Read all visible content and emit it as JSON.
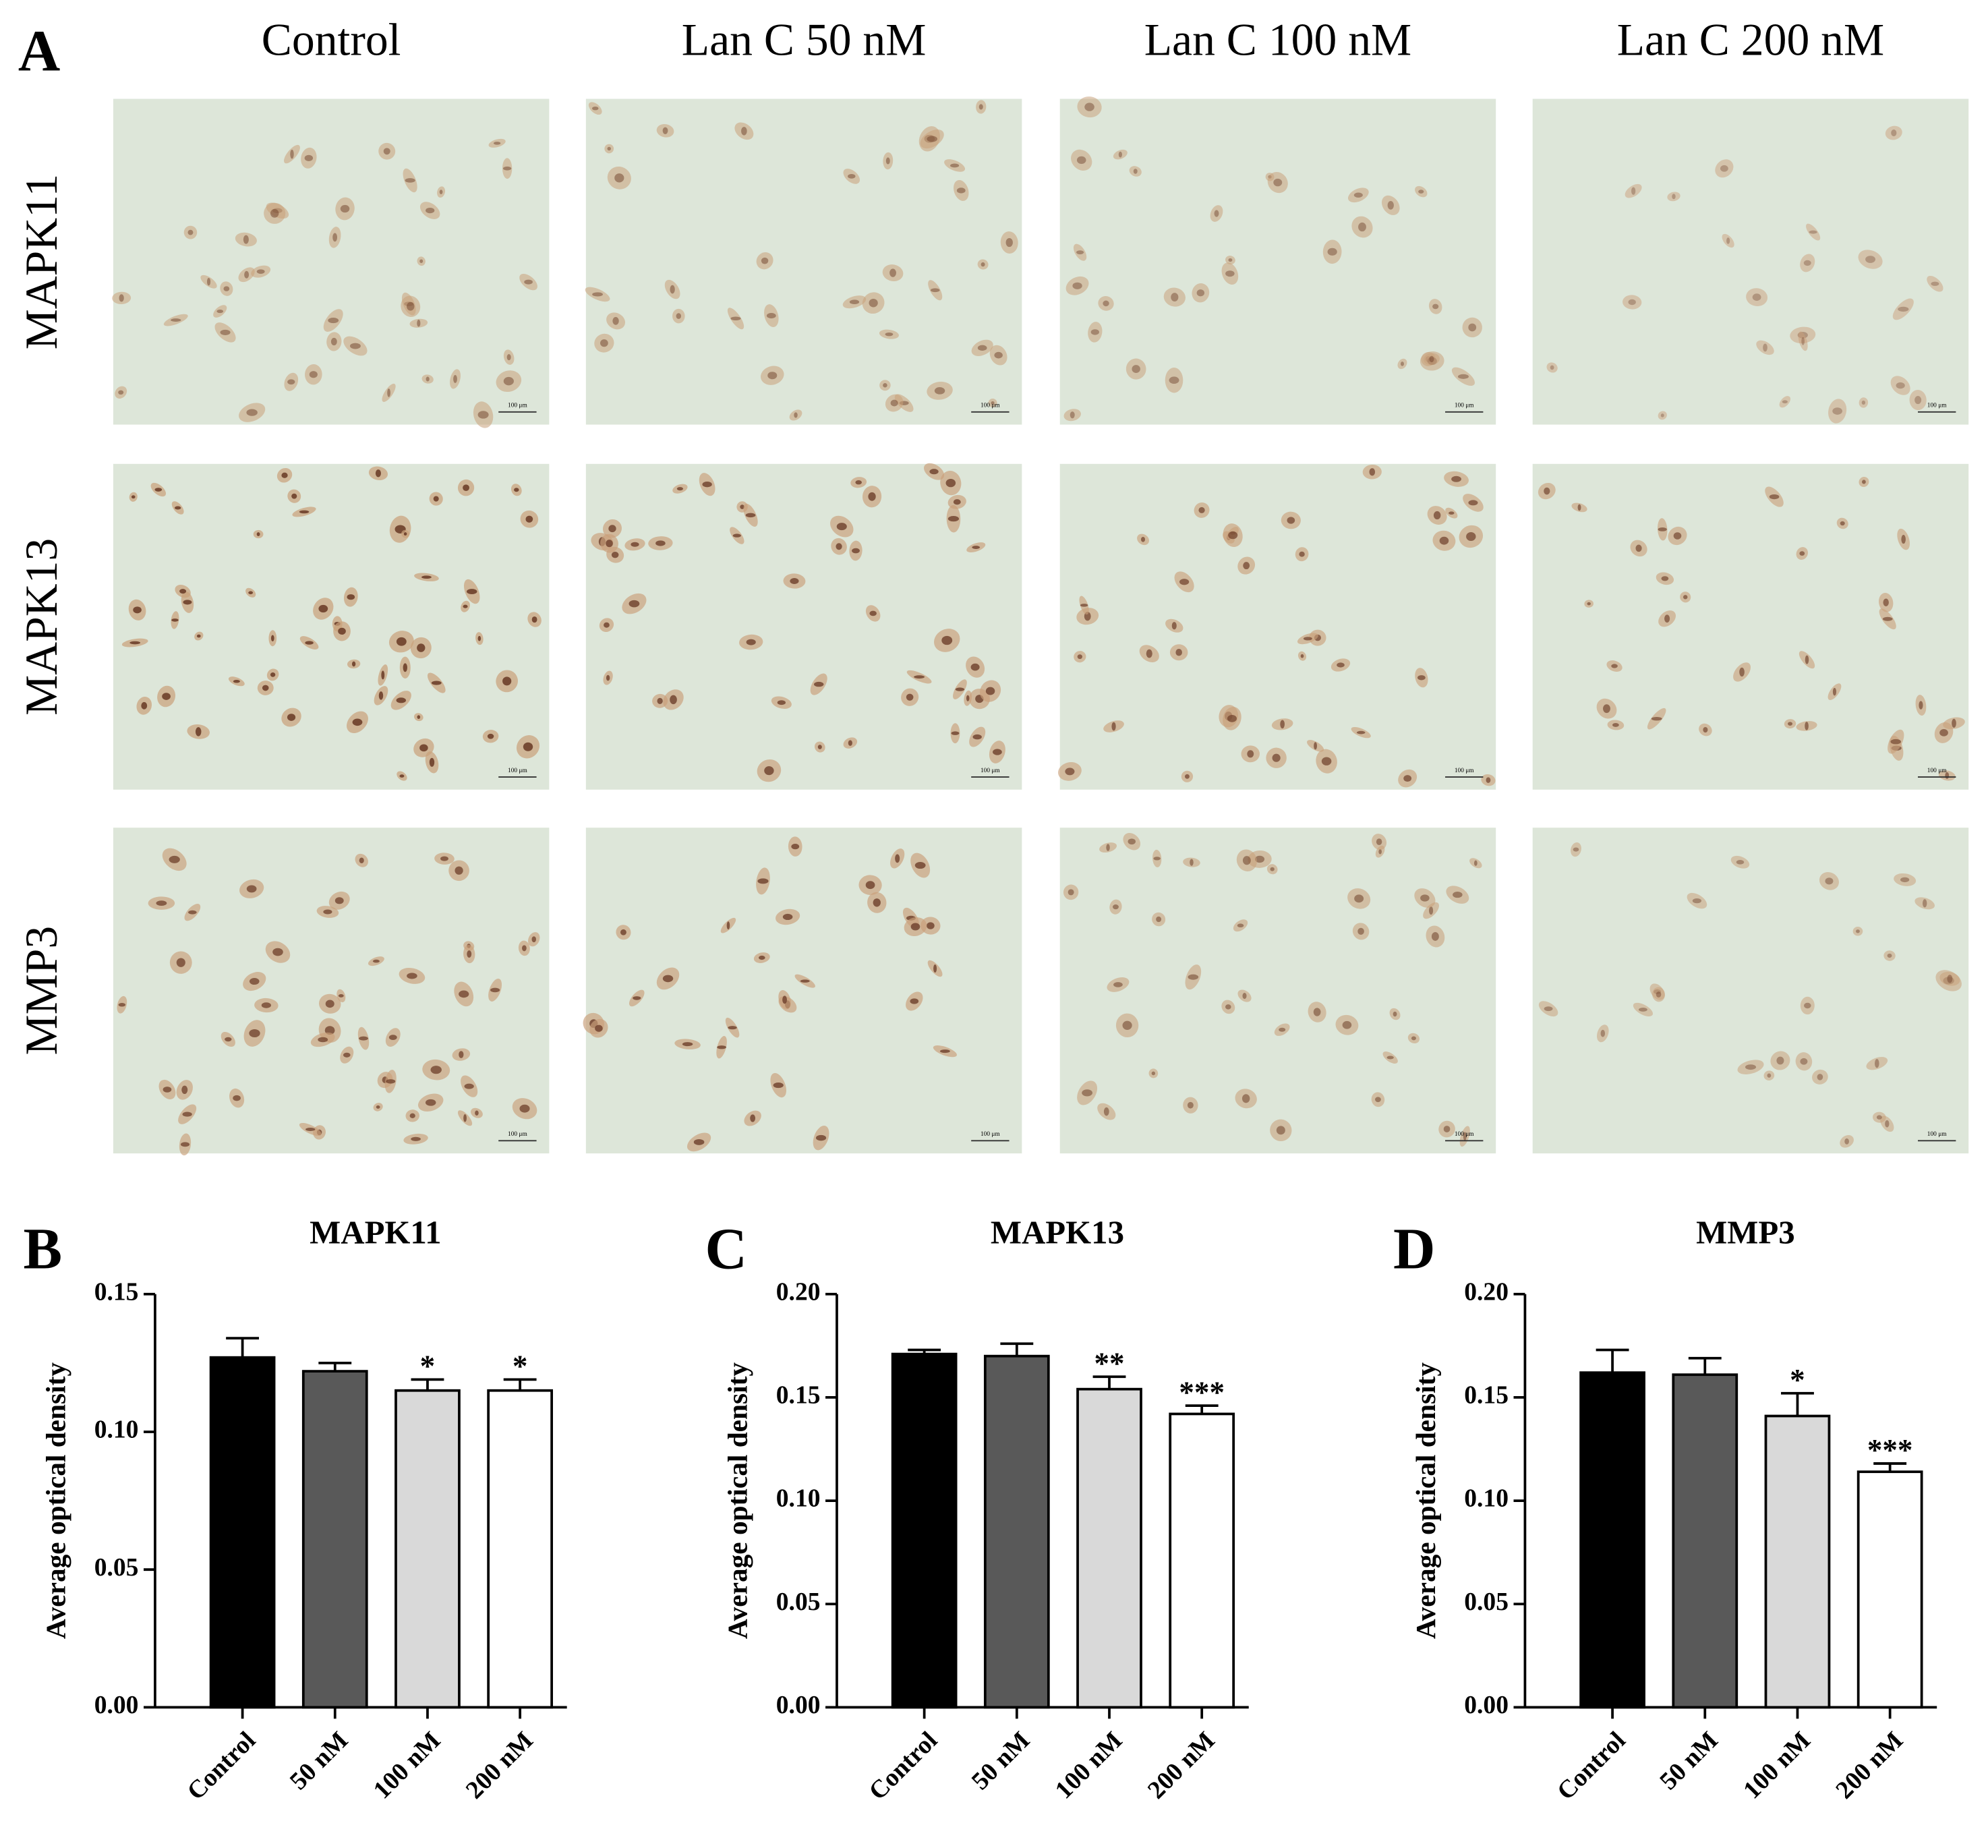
{
  "panel_a": {
    "label": "A",
    "columns": [
      "Control",
      "Lan C  50 nM",
      "Lan C  100 nM",
      "Lan C  200 nM"
    ],
    "rows": [
      "MAPK11",
      "MAPK13",
      "MMP3"
    ],
    "scale_bar": "100 μm"
  },
  "chart_data": [
    {
      "type": "bar",
      "panel": "B",
      "title": "MAPK11",
      "y_label": "Average optical density",
      "categories": [
        "Control",
        "50 nM",
        "100 nM",
        "200 nM"
      ],
      "values": [
        0.127,
        0.122,
        0.115,
        0.115
      ],
      "errors": [
        0.007,
        0.003,
        0.004,
        0.004
      ],
      "annotations": [
        null,
        null,
        "*",
        "*"
      ],
      "colors": [
        "#000000",
        "#595959",
        "#d9d9d9",
        "#ffffff"
      ],
      "ylim": [
        0,
        0.15
      ],
      "yticks": [
        {
          "value": 0,
          "label": "0.00"
        },
        {
          "value": 0.05,
          "label": "0.05"
        },
        {
          "value": 0.1,
          "label": "0.10"
        },
        {
          "value": 0.15,
          "label": "0.15"
        }
      ]
    },
    {
      "type": "bar",
      "panel": "C",
      "title": "MAPK13",
      "y_label": "Average optical density",
      "categories": [
        "Control",
        "50 nM",
        "100 nM",
        "200 nM"
      ],
      "values": [
        0.171,
        0.17,
        0.154,
        0.142
      ],
      "errors": [
        0.002,
        0.006,
        0.006,
        0.004
      ],
      "annotations": [
        null,
        null,
        "**",
        "***"
      ],
      "colors": [
        "#000000",
        "#595959",
        "#d9d9d9",
        "#ffffff"
      ],
      "ylim": [
        0,
        0.2
      ],
      "yticks": [
        {
          "value": 0,
          "label": "0.00"
        },
        {
          "value": 0.05,
          "label": "0.05"
        },
        {
          "value": 0.1,
          "label": "0.10"
        },
        {
          "value": 0.15,
          "label": "0.15"
        },
        {
          "value": 0.2,
          "label": "0.20"
        }
      ]
    },
    {
      "type": "bar",
      "panel": "D",
      "title": "MMP3",
      "y_label": "Average optical density",
      "categories": [
        "Control",
        "50 nM",
        "100 nM",
        "200 nM"
      ],
      "values": [
        0.162,
        0.161,
        0.141,
        0.114
      ],
      "errors": [
        0.011,
        0.008,
        0.011,
        0.004
      ],
      "annotations": [
        null,
        null,
        "*",
        "***"
      ],
      "colors": [
        "#000000",
        "#595959",
        "#d9d9d9",
        "#ffffff"
      ],
      "ylim": [
        0,
        0.2
      ],
      "yticks": [
        {
          "value": 0,
          "label": "0.00"
        },
        {
          "value": 0.05,
          "label": "0.05"
        },
        {
          "value": 0.1,
          "label": "0.10"
        },
        {
          "value": 0.15,
          "label": "0.15"
        },
        {
          "value": 0.2,
          "label": "0.20"
        }
      ]
    }
  ]
}
